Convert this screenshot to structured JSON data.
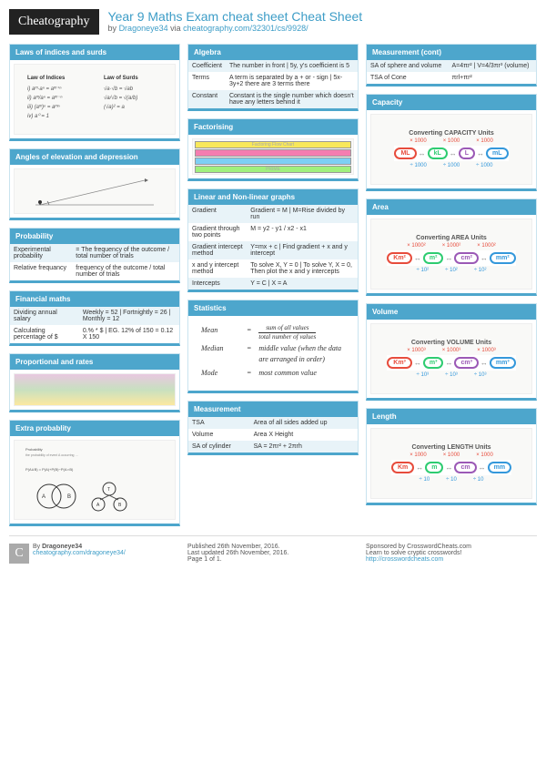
{
  "header": {
    "logo": "Cheatography",
    "title": "Year 9 Maths Exam cheat sheet Cheat Sheet",
    "by": "by",
    "author": "Dragoneye34",
    "via": "via",
    "url": "cheatography.com/32301/cs/9928/"
  },
  "colors": {
    "accent": "#4da6cc",
    "link": "#3d9dc7",
    "altRow": "#e8f3f8"
  },
  "boxes": {
    "laws": {
      "title": "Laws of indices and surds",
      "left": "Law of Indices",
      "right": "Law of Surds"
    },
    "angles": {
      "title": "Angles of elevation and depression"
    },
    "probability": {
      "title": "Probability",
      "rows": [
        [
          "Experimental probability",
          "= The frequency of the outcome / total number of trials"
        ],
        [
          "Relative frequancy",
          "frequency of the outcome / total number of trials"
        ]
      ]
    },
    "financial": {
      "title": "Financial maths",
      "rows": [
        [
          "Dividing annual salary",
          "Weekly = 52 | Fortnightly = 26 | Monthly = 12"
        ],
        [
          "Calculating percentage of $",
          "0.% * $ | EG. 12% of 150 = 0.12 X 150"
        ]
      ]
    },
    "proportional": {
      "title": "Proportional and rates"
    },
    "extra": {
      "title": "Extra probablity"
    },
    "algebra": {
      "title": "Algebra",
      "rows": [
        [
          "Coefficient",
          "The number in front | 5y, y's coefficient is 5"
        ],
        [
          "Terms",
          "A term is separated by a + or - sign | 5x-3y+2 there are 3 terms there"
        ],
        [
          "Constant",
          "Constant is the single number which doesn't have any letters behind it"
        ]
      ]
    },
    "factorising": {
      "title": "Factorising"
    },
    "linear": {
      "title": "Linear and Non-linear graphs",
      "rows": [
        [
          "Gradient",
          "Gradient = M | M=Rise divided by run"
        ],
        [
          "Gradient through two points",
          "M = y2 - y1 / x2 - x1"
        ],
        [
          "Gradient intercept method",
          "Y=mx + c | Find gradient + x and y intercept"
        ],
        [
          "x and y intercept method",
          "To solve X, Y = 0 | To solve Y, X = 0, Then plot the x and y intercepts"
        ],
        [
          "Intercepts",
          "Y = C | X = A"
        ]
      ]
    },
    "statistics": {
      "title": "Statistics",
      "mean": {
        "term": "Mean",
        "eq": "=",
        "num": "sum of all values",
        "den": "total number of values"
      },
      "median": {
        "term": "Median",
        "eq": "=",
        "def": "middle value (when the data are arranged in order)"
      },
      "mode": {
        "term": "Mode",
        "eq": "=",
        "def": "most common value"
      }
    },
    "measurement": {
      "title": "Measurement",
      "rows": [
        [
          "TSA",
          "Area of all sides added up"
        ],
        [
          "Volume",
          "Area X Height"
        ],
        [
          "SA of cylinder",
          "SA = 2πr² + 2πrh"
        ]
      ]
    },
    "measurementCont": {
      "title": "Measurement (cont)",
      "rows": [
        [
          "SA of sphere and volume",
          "A=4πr² | V=4/3πr³ (volume)"
        ],
        [
          "TSA of Cone",
          "πrl+πr²"
        ]
      ]
    },
    "capacity": {
      "title": "Capacity",
      "img": "Converting CAPACITY Units",
      "units": [
        "ML",
        "kL",
        "L",
        "mL"
      ],
      "mul": "× 1000",
      "div": "÷ 1000"
    },
    "area": {
      "title": "Area",
      "img": "Converting AREA Units",
      "units": [
        "Km²",
        "m²",
        "cm²",
        "mm²"
      ],
      "mul": "× 1000²",
      "div": "÷ 10²"
    },
    "volume": {
      "title": "Volume",
      "img": "Converting VOLUME Units",
      "units": [
        "Km³",
        "m³",
        "cm³",
        "mm³"
      ],
      "mul": "× 1000³",
      "div": "÷ 10³"
    },
    "length": {
      "title": "Length",
      "img": "Converting LENGTH Units",
      "units": [
        "Km",
        "m",
        "cm",
        "mm"
      ],
      "mul": "× 1000",
      "div": "÷ 10"
    }
  },
  "unitColors": [
    "#e74c3c",
    "#2ecc71",
    "#9b59b6",
    "#3498db"
  ],
  "footer": {
    "c1": {
      "by": "By",
      "author": "Dragoneye34",
      "url": "cheatography.com/dragoneye34/"
    },
    "c2": {
      "pub": "Published 26th November, 2016.",
      "upd": "Last updated 26th November, 2016.",
      "page": "Page 1 of 1."
    },
    "c3": {
      "sponsor": "Sponsored by CrosswordCheats.com",
      "tag": "Learn to solve cryptic crosswords!",
      "url": "http://crosswordcheats.com"
    }
  }
}
